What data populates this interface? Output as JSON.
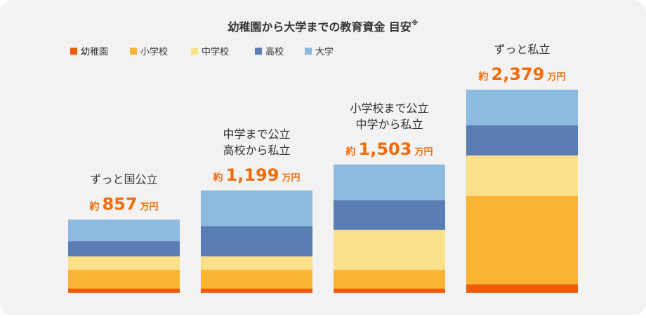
{
  "chart_data": {
    "type": "stacked_bar",
    "title": "幼稚園から大学までの教育資金 目安",
    "title_mark": "※",
    "categories": [
      [
        "ずっと国公立"
      ],
      [
        "中学まで公立",
        "高校から私立"
      ],
      [
        "小学校まで公立",
        "中学から私立"
      ],
      [
        "ずっと私立"
      ]
    ],
    "series": [
      {
        "name": "幼稚園",
        "color": "#ef5b0c",
        "values": [
          49,
          49,
          49,
          98
        ]
      },
      {
        "name": "小学校",
        "color": "#fbb332",
        "values": [
          221,
          221,
          221,
          1034
        ]
      },
      {
        "name": "中学校",
        "color": "#fbe08a",
        "values": [
          156,
          156,
          468,
          476
        ]
      },
      {
        "name": "高校",
        "color": "#5b7db5",
        "values": [
          180,
          353,
          345,
          353
        ]
      },
      {
        "name": "大学",
        "color": "#8dbae0",
        "values": [
          251,
          420,
          420,
          418
        ]
      }
    ],
    "totals": [
      857,
      1199,
      1503,
      2379
    ],
    "total_labels": [
      "857",
      "1,199",
      "1,503",
      "2,379"
    ],
    "total_prefix": "約",
    "total_unit": "万円",
    "total_color": "#ef6c0c"
  }
}
